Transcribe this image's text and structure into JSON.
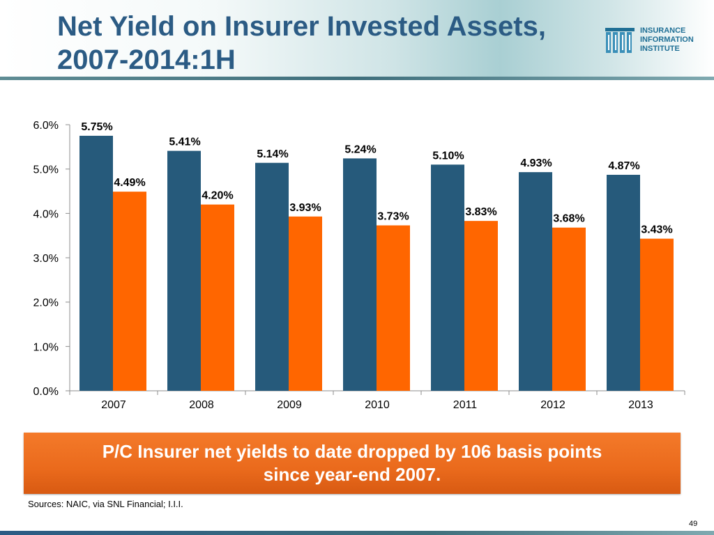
{
  "title": "Net Yield on Insurer Invested Assets, 2007-2014:1H",
  "logo": {
    "lines": [
      "INSURANCE",
      "INFORMATION",
      "INSTITUTE"
    ],
    "color": "#1f6f95"
  },
  "chart_data": {
    "type": "bar",
    "categories": [
      "2007",
      "2008",
      "2009",
      "2010",
      "2011",
      "2012",
      "2013"
    ],
    "series": [
      {
        "values": [
          5.75,
          5.41,
          5.14,
          5.24,
          5.1,
          4.93,
          4.87
        ],
        "labels": [
          "5.75%",
          "5.41%",
          "5.14%",
          "5.24%",
          "5.10%",
          "4.93%",
          "4.87%"
        ],
        "color": "#265a7b"
      },
      {
        "values": [
          4.49,
          4.2,
          3.93,
          3.73,
          3.83,
          3.68,
          3.43
        ],
        "labels": [
          "4.49%",
          "4.20%",
          "3.93%",
          "3.73%",
          "3.83%",
          "3.68%",
          "3.43%"
        ],
        "color": "#ff6600"
      }
    ],
    "ylim": [
      0,
      6
    ],
    "yticks": [
      0,
      1,
      2,
      3,
      4,
      5,
      6
    ],
    "ytick_labels": [
      "0.0%",
      "1.0%",
      "2.0%",
      "3.0%",
      "4.0%",
      "5.0%",
      "6.0%"
    ],
    "grid": false,
    "legend": "none"
  },
  "callout": {
    "line1": "P/C Insurer net yields to date dropped by 106 basis points",
    "line2": "since year-end 2007."
  },
  "sources": "Sources: NAIC, via SNL Financial; I.I.I.",
  "page_number": "49"
}
